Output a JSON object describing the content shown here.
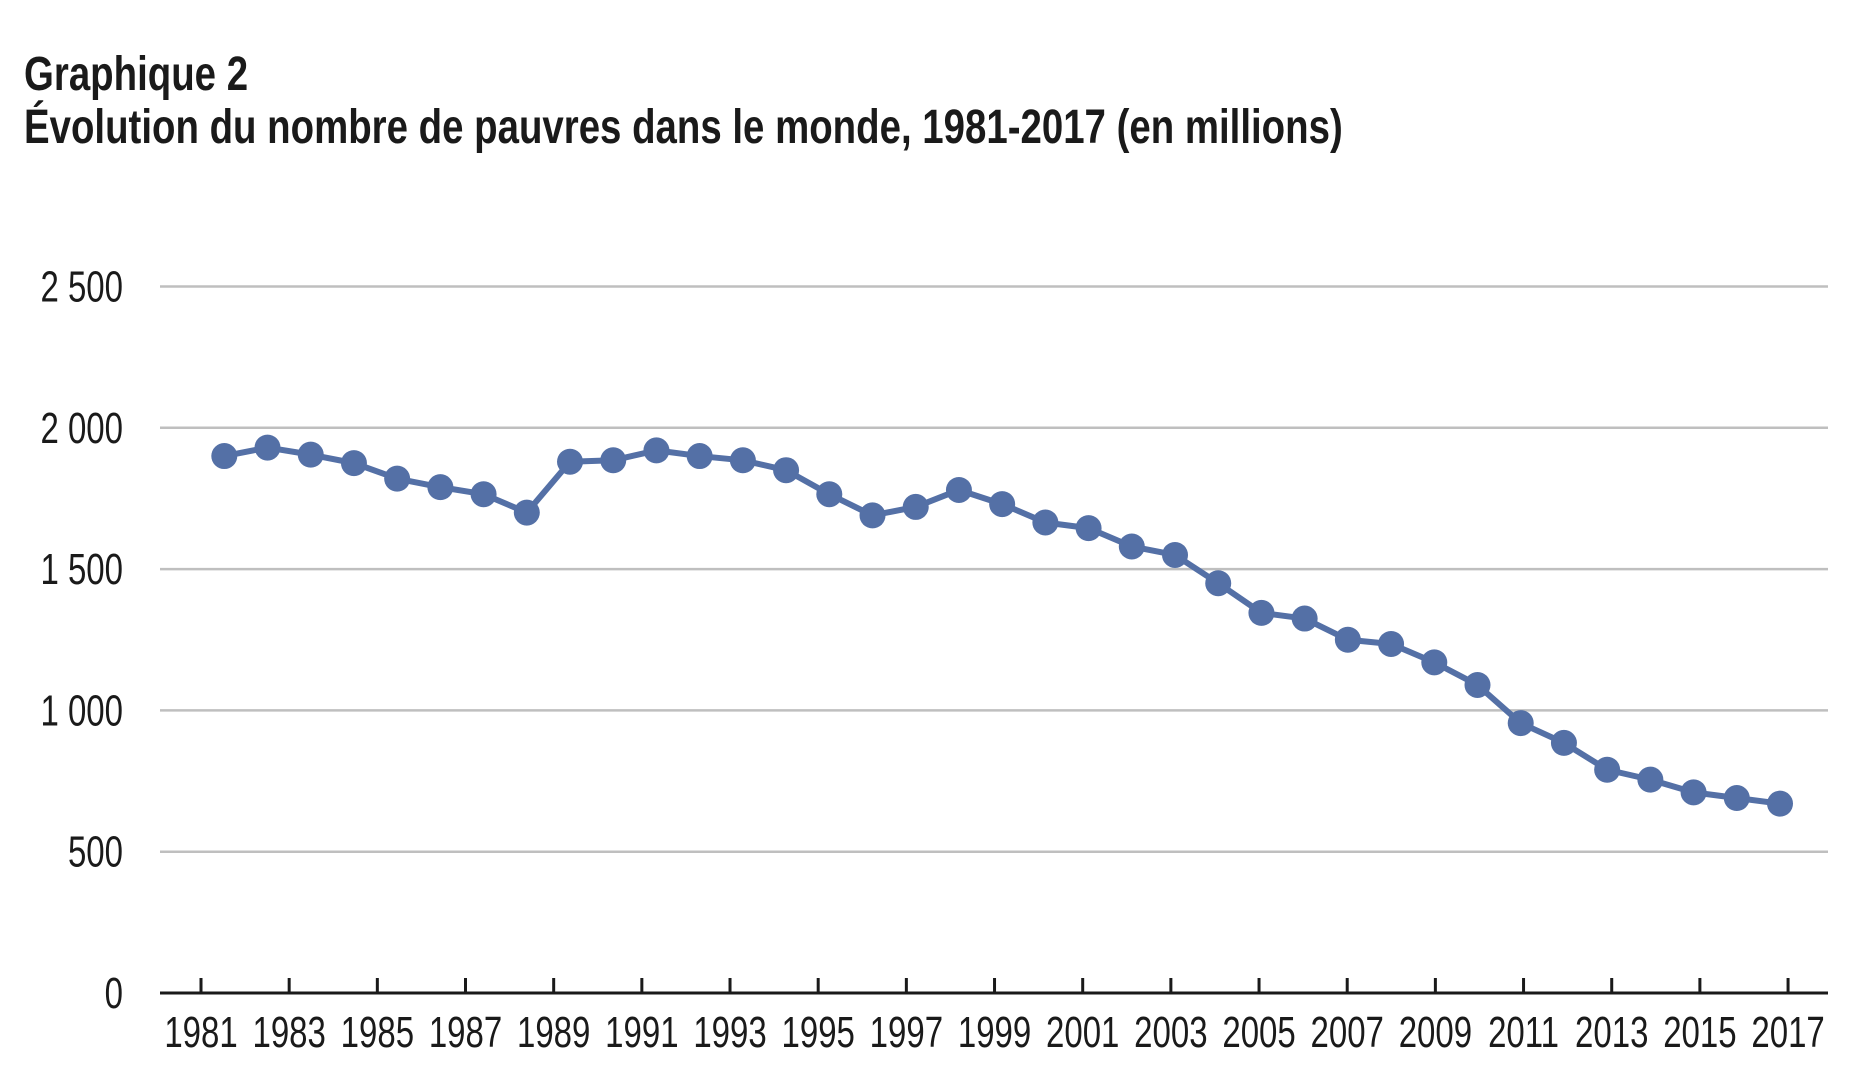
{
  "title": {
    "label": "Graphique 2",
    "subtitle": "Évolution du nombre de pauvres dans le monde, 1981-2017 (en millions)"
  },
  "chart_data": {
    "type": "line",
    "title": "Graphique 2",
    "subtitle": "Évolution du nombre de pauvres dans le monde, 1981-2017 (en millions)",
    "x": [
      1981,
      1982,
      1983,
      1984,
      1985,
      1986,
      1987,
      1988,
      1989,
      1990,
      1991,
      1992,
      1993,
      1994,
      1995,
      1996,
      1997,
      1998,
      1999,
      2000,
      2001,
      2002,
      2003,
      2004,
      2005,
      2006,
      2007,
      2008,
      2009,
      2010,
      2011,
      2012,
      2013,
      2014,
      2015,
      2016,
      2017
    ],
    "values": [
      1900,
      1930,
      1905,
      1875,
      1820,
      1790,
      1765,
      1700,
      1880,
      1885,
      1920,
      1900,
      1885,
      1850,
      1765,
      1690,
      1720,
      1780,
      1730,
      1665,
      1645,
      1580,
      1550,
      1450,
      1345,
      1325,
      1250,
      1235,
      1170,
      1090,
      955,
      885,
      790,
      755,
      710,
      690,
      670
    ],
    "xlabel": "",
    "ylabel": "",
    "ylim": [
      0,
      2500
    ],
    "y_ticks": [
      0,
      500,
      1000,
      1500,
      2000,
      2500
    ],
    "y_tick_labels": [
      "0",
      "500",
      "1 000",
      "1 500",
      "2 000",
      "2 500"
    ],
    "x_tick_labels": [
      "1981",
      "1983",
      "1985",
      "1987",
      "1989",
      "1991",
      "1993",
      "1995",
      "1997",
      "1999",
      "2001",
      "2003",
      "2005",
      "2007",
      "2009",
      "2011",
      "2013",
      "2015",
      "2017"
    ],
    "grid": "horizontal",
    "legend_position": "none",
    "marker": "circle",
    "colors": {
      "line": "#5470A6",
      "grid": "#BFBFBF",
      "axis": "#1A1A1A",
      "text": "#1A1A1A",
      "background": "#FFFFFF"
    }
  }
}
